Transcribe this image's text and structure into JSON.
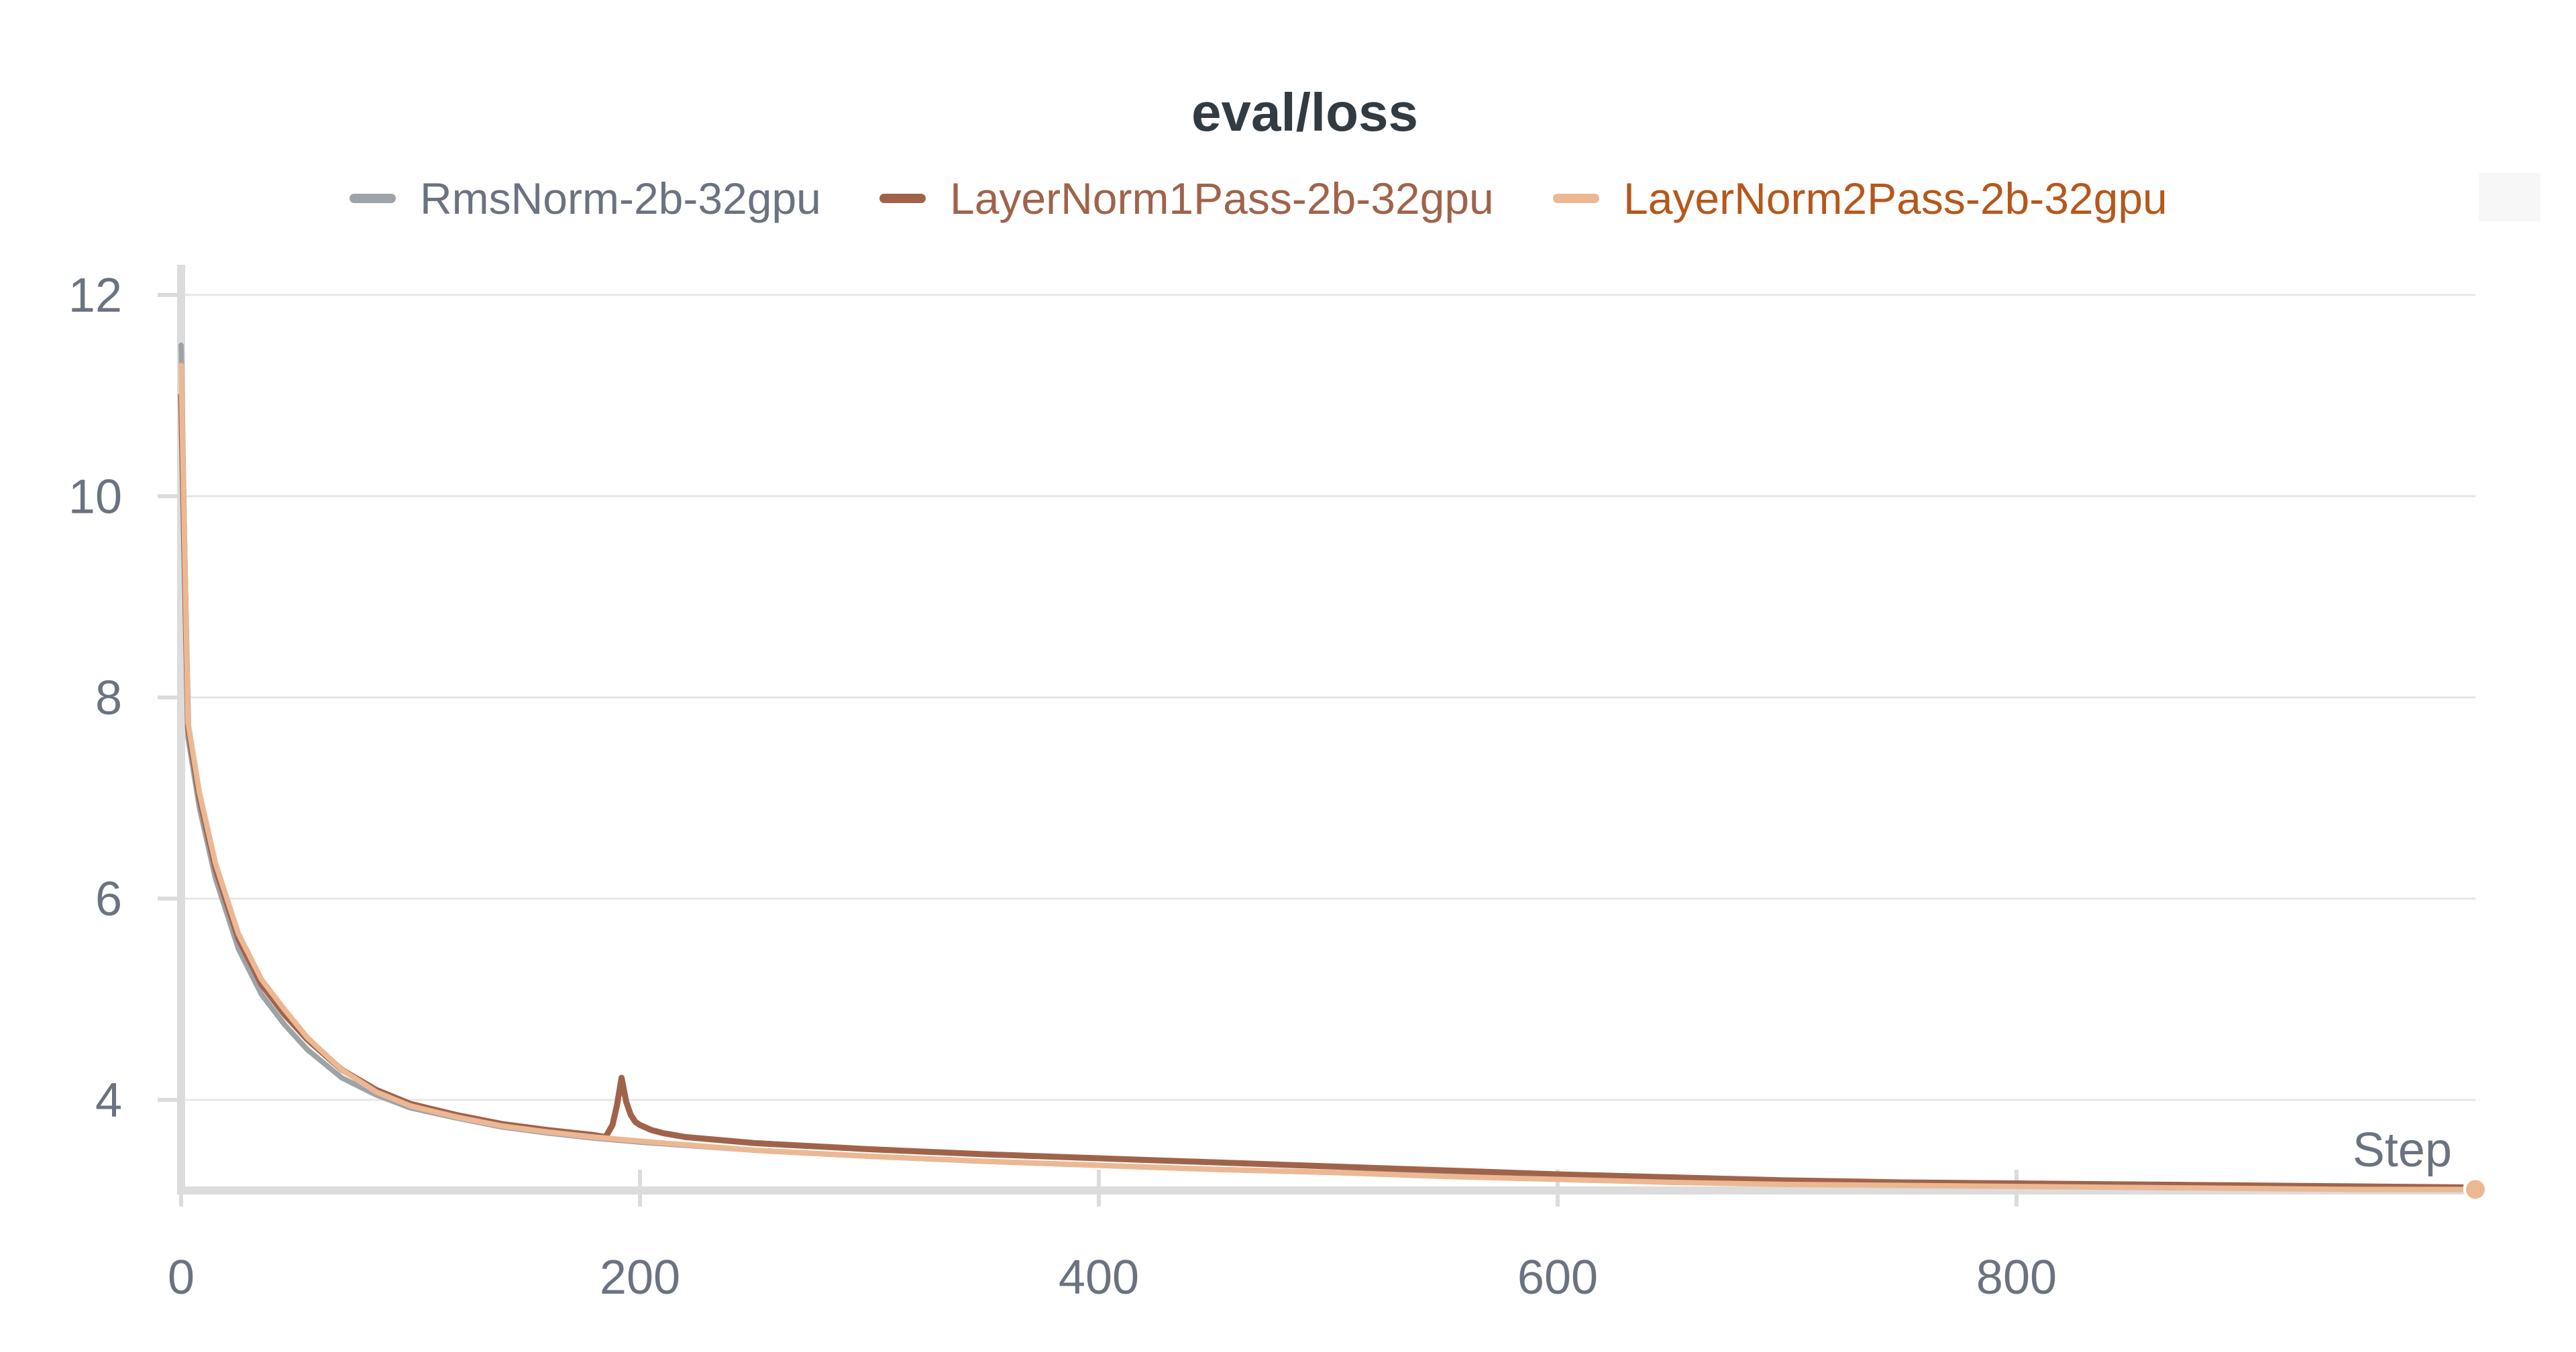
{
  "chart_data": {
    "type": "line",
    "title": "eval/loss",
    "xlabel": "Step",
    "ylabel": "",
    "xlim": [
      0,
      1000
    ],
    "ylim": [
      3.1,
      12.3
    ],
    "x_ticks": [
      "0",
      "200",
      "400",
      "600",
      "800"
    ],
    "y_ticks": [
      "4",
      "6",
      "8",
      "10",
      "12"
    ],
    "grid": true,
    "legend_position": "top-center",
    "series": [
      {
        "name": "RmsNorm-2b-32gpu",
        "color": "#9ea3a8",
        "text_color": "#6b7280",
        "x": [
          0,
          3,
          8,
          15,
          25,
          35,
          45,
          55,
          70,
          85,
          100,
          120,
          140,
          160,
          180,
          200,
          250,
          300,
          350,
          400,
          450,
          500,
          550,
          600,
          650,
          700,
          750,
          800,
          850,
          900,
          950,
          1000
        ],
        "y": [
          11.5,
          7.6,
          6.9,
          6.2,
          5.5,
          5.05,
          4.75,
          4.5,
          4.22,
          4.05,
          3.92,
          3.82,
          3.73,
          3.67,
          3.62,
          3.58,
          3.5,
          3.44,
          3.39,
          3.35,
          3.31,
          3.28,
          3.25,
          3.22,
          3.19,
          3.17,
          3.16,
          3.15,
          3.14,
          3.13,
          3.12,
          3.12
        ]
      },
      {
        "name": "LayerNorm1Pass-2b-32gpu",
        "color": "#a0634a",
        "text_color": "#a0634a",
        "x": [
          0,
          3,
          8,
          15,
          25,
          35,
          45,
          55,
          70,
          85,
          100,
          120,
          140,
          160,
          180,
          185,
          188,
          190,
          192,
          194,
          196,
          198,
          200,
          205,
          210,
          220,
          250,
          300,
          350,
          400,
          450,
          500,
          550,
          600,
          650,
          700,
          750,
          800,
          850,
          900,
          950,
          1000
        ],
        "y": [
          11.0,
          7.7,
          7.0,
          6.3,
          5.6,
          5.15,
          4.85,
          4.6,
          4.3,
          4.1,
          3.96,
          3.85,
          3.76,
          3.7,
          3.65,
          3.63,
          3.75,
          3.95,
          4.22,
          3.98,
          3.85,
          3.78,
          3.75,
          3.7,
          3.67,
          3.63,
          3.57,
          3.51,
          3.46,
          3.42,
          3.38,
          3.34,
          3.3,
          3.26,
          3.23,
          3.2,
          3.18,
          3.17,
          3.16,
          3.15,
          3.14,
          3.13
        ]
      },
      {
        "name": "LayerNorm2Pass-2b-32gpu",
        "color": "#ecb893",
        "text_color": "#b5581c",
        "x": [
          0,
          3,
          8,
          15,
          25,
          35,
          45,
          55,
          70,
          85,
          100,
          120,
          140,
          160,
          180,
          200,
          250,
          300,
          350,
          400,
          450,
          500,
          550,
          600,
          650,
          700,
          750,
          800,
          850,
          900,
          950,
          1000
        ],
        "y": [
          11.3,
          7.75,
          7.05,
          6.35,
          5.65,
          5.2,
          4.9,
          4.62,
          4.3,
          4.08,
          3.94,
          3.83,
          3.74,
          3.68,
          3.63,
          3.59,
          3.5,
          3.44,
          3.39,
          3.35,
          3.31,
          3.28,
          3.24,
          3.21,
          3.18,
          3.16,
          3.15,
          3.14,
          3.13,
          3.12,
          3.11,
          3.11
        ]
      }
    ]
  }
}
